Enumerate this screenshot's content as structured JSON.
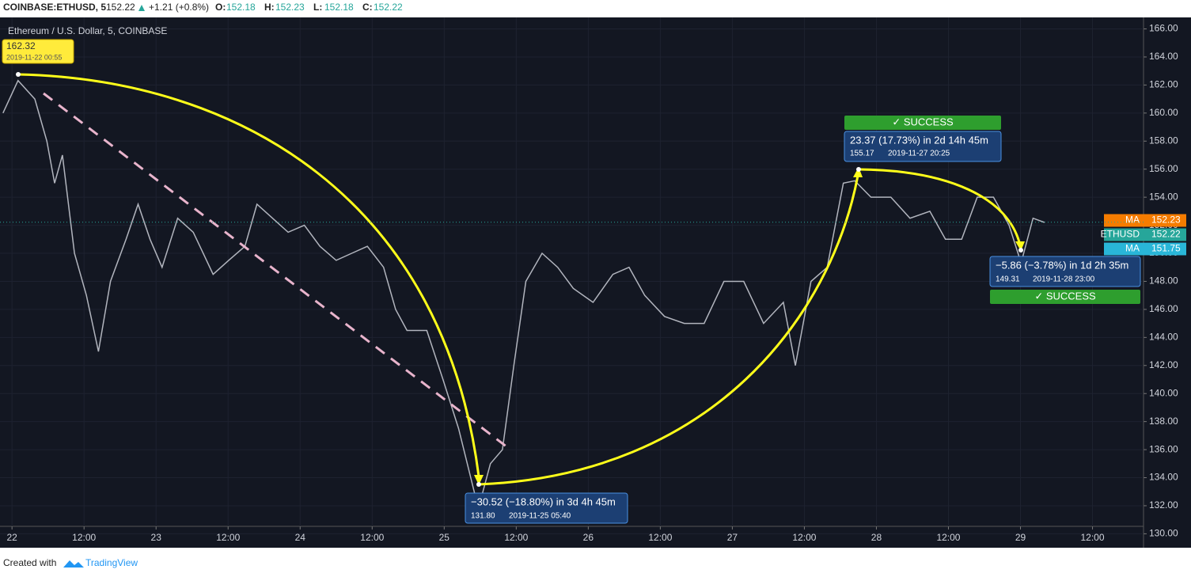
{
  "header": {
    "symbol": "COINBASE:ETHUSD, 5",
    "price": 152.22,
    "change": "+1.21 (+0.8%)",
    "ohlc": [
      {
        "label": "O:",
        "value": 152.18
      },
      {
        "label": "H:",
        "value": 152.23
      },
      {
        "label": "L:",
        "value": 152.18
      },
      {
        "label": "C:",
        "value": 152.22
      }
    ]
  },
  "chart_data": {
    "type": "line",
    "title": "Ethereum / U.S. Dollar, 5, COINBASE",
    "color": "#b2b5be",
    "x": [
      -1.5,
      1,
      3.8,
      5.8,
      7.1,
      8.4,
      10.4,
      12.4,
      14.4,
      16.4,
      19,
      21,
      23,
      25,
      27.6,
      30.2,
      33.5,
      36.1,
      38.8,
      40.8,
      43.4,
      46,
      48.7,
      51.3,
      54,
      56.6,
      59.2,
      61.9,
      63.9,
      65.8,
      69.1,
      71.8,
      74.4,
      77.7,
      79.7,
      81.7,
      83.6,
      85.6,
      88.3,
      90.9,
      93.5,
      96.8,
      100.1,
      102.8,
      105.4,
      108.7,
      112,
      115.3,
      118.6,
      121.9,
      125.2,
      128.5,
      130.5,
      133.1,
      135.8,
      138.5,
      140.4,
      143.1,
      146.4,
      149.6,
      152.9,
      155.5,
      158.2,
      160.8,
      163.5,
      166.1,
      168.1,
      170.1,
      172
    ],
    "values": [
      160,
      162.32,
      161,
      158,
      155,
      157,
      150,
      147,
      143,
      148,
      151,
      153.5,
      151,
      149,
      152.5,
      151.5,
      148.5,
      149.5,
      150.5,
      153.5,
      152.5,
      151.5,
      152,
      150.5,
      149.5,
      150,
      150.5,
      149,
      146,
      144.5,
      144.5,
      141,
      137.5,
      131.8,
      135,
      136,
      142,
      148,
      150,
      149,
      147.5,
      146.5,
      148.5,
      149,
      147,
      145.5,
      145,
      145,
      148,
      148,
      145,
      146.5,
      142,
      148,
      149,
      155,
      155.17,
      154,
      154,
      152.5,
      153,
      151,
      151,
      154,
      154,
      152,
      149.31,
      152.5,
      152.2
    ],
    "xlim": [
      -2,
      188.5
    ],
    "xticks": [
      {
        "value": 0,
        "label": "22"
      },
      {
        "value": 12,
        "label": "12:00"
      },
      {
        "value": 24,
        "label": "23"
      },
      {
        "value": 36,
        "label": "12:00"
      },
      {
        "value": 48,
        "label": "24"
      },
      {
        "value": 60,
        "label": "12:00"
      },
      {
        "value": 72,
        "label": "25"
      },
      {
        "value": 84,
        "label": "12:00"
      },
      {
        "value": 96,
        "label": "26"
      },
      {
        "value": 108,
        "label": "12:00"
      },
      {
        "value": 120,
        "label": "27"
      },
      {
        "value": 132,
        "label": "12:00"
      },
      {
        "value": 144,
        "label": "28"
      },
      {
        "value": 156,
        "label": "12:00"
      },
      {
        "value": 168,
        "label": "29"
      },
      {
        "value": 180,
        "label": "12:00"
      }
    ],
    "ylim": [
      130.53,
      166.82
    ],
    "yticks": [
      {
        "value": 130,
        "label": "130.00"
      },
      {
        "value": 132,
        "label": "132.00"
      },
      {
        "value": 134,
        "label": "134.00"
      },
      {
        "value": 136,
        "label": "136.00"
      },
      {
        "value": 138,
        "label": "138.00"
      },
      {
        "value": 140,
        "label": "140.00"
      },
      {
        "value": 142,
        "label": "142.00"
      },
      {
        "value": 144,
        "label": "144.00"
      },
      {
        "value": 146,
        "label": "146.00"
      },
      {
        "value": 148,
        "label": "148.00"
      },
      {
        "value": 150,
        "label": "150.00"
      },
      {
        "value": 152,
        "label": "152.00"
      },
      {
        "value": 154,
        "label": "154.00"
      },
      {
        "value": 156,
        "label": "156.00"
      },
      {
        "value": 158,
        "label": "158.00"
      },
      {
        "value": 160,
        "label": "160.00"
      },
      {
        "value": 162,
        "label": "162.00"
      },
      {
        "value": 164,
        "label": "164.00"
      },
      {
        "value": 166,
        "label": "166.00"
      }
    ],
    "grid": true,
    "price_labels": [
      {
        "name": "MA",
        "value": 152.23,
        "color": "#f57c00"
      },
      {
        "name": "ETHUSD",
        "value": 152.22,
        "color": "#26a69a"
      },
      {
        "name": "MA",
        "value": 151.75,
        "color": "#29b6d8"
      }
    ],
    "annotations": [
      {
        "price": "162.32",
        "time": "2019-11-22 00:55"
      },
      {
        "text": "−30.52 (−18.80%) in 3d 4h 45m",
        "price": "131.80",
        "time": "2019-11-25  05:40"
      },
      {
        "status": "✓ SUCCESS",
        "text": "23.37 (17.73%) in 2d 14h 45m",
        "price": "155.17",
        "time": "2019-11-27  20:25"
      },
      {
        "status": "✓ SUCCESS",
        "text": "−5.86 (−3.78%) in 1d 2h 35m",
        "price": "149.31",
        "time": "2019-11-28  23:00"
      }
    ]
  },
  "footer": {
    "text": "Created with",
    "brand": "TradingView"
  }
}
